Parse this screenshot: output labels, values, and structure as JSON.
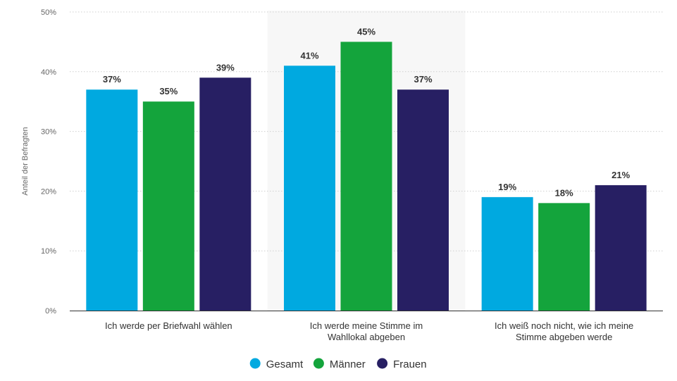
{
  "chart_data": {
    "type": "bar",
    "categories": [
      [
        "Ich werde per Briefwahl wählen"
      ],
      [
        "Ich werde meine Stimme im",
        "Wahllokal abgeben"
      ],
      [
        "Ich weiß noch nicht, wie ich meine",
        "Stimme abgeben werde"
      ]
    ],
    "series": [
      {
        "name": "Gesamt",
        "color": "#00a9e0",
        "values": [
          37,
          41,
          19
        ]
      },
      {
        "name": "Männer",
        "color": "#14a43c",
        "values": [
          35,
          45,
          18
        ]
      },
      {
        "name": "Frauen",
        "color": "#271f63",
        "values": [
          39,
          37,
          21
        ]
      }
    ],
    "value_suffix": "%",
    "ylabel": "Anteil der Befragten",
    "ylim": [
      0,
      50
    ],
    "yticks": [
      "0%",
      "10%",
      "20%",
      "30%",
      "40%",
      "50%"
    ],
    "highlight_category": 1,
    "grid": true,
    "legend_position": "bottom-center"
  }
}
